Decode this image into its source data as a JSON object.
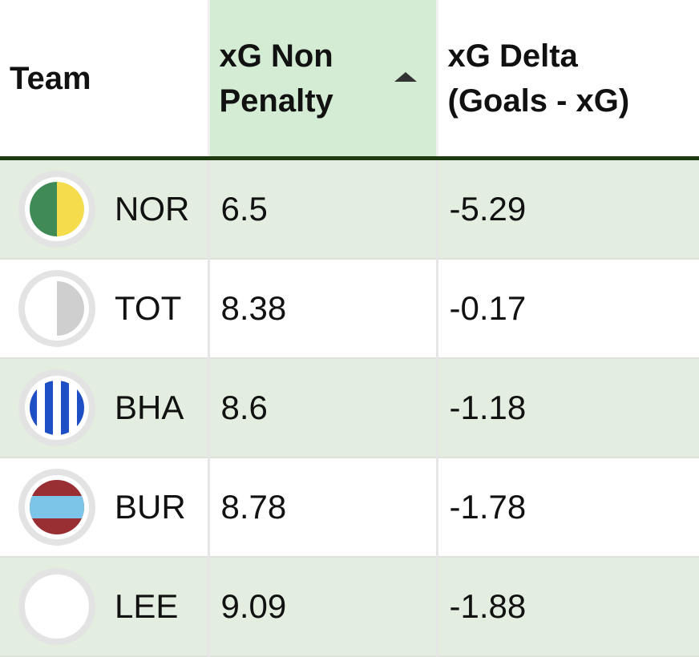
{
  "table": {
    "header": [
      "Team",
      "xG Non Penalty",
      "xG Delta (Goals - xG)"
    ],
    "rows": [
      [
        "NOR",
        "6.5",
        "-5.29"
      ],
      [
        "TOT",
        "8.38",
        "-0.17"
      ],
      [
        "BHA",
        "8.6",
        "-1.18"
      ],
      [
        "BUR",
        "8.78",
        "-1.78"
      ],
      [
        "LEE",
        "9.09",
        "-1.88"
      ]
    ]
  }
}
